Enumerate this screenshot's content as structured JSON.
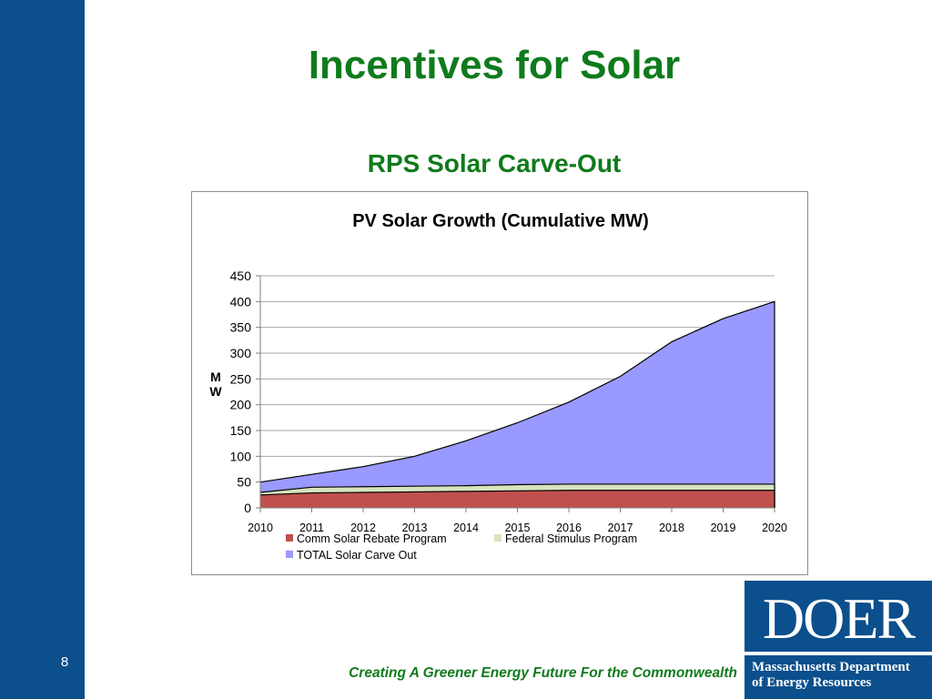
{
  "slide": {
    "title": "Incentives for Solar",
    "subtitle": "RPS Solar Carve-Out",
    "page_number": "8",
    "footer": "Creating A Greener Energy Future For the Commonwealth",
    "logo": {
      "mark": "DOER",
      "line1": "Massachusetts Department",
      "line2": "of Energy Resources"
    },
    "colors": {
      "sidebar": "#0b4f8c",
      "title_green": "#0f7b1c"
    }
  },
  "chart_data": {
    "type": "area",
    "title": "PV Solar Growth (Cumulative MW)",
    "ylabel": "MW",
    "ylim": [
      0,
      450
    ],
    "yticks": [
      0,
      50,
      100,
      150,
      200,
      250,
      300,
      350,
      400,
      450
    ],
    "grid": true,
    "legend_position": "bottom",
    "x": [
      "2010",
      "2011",
      "2012",
      "2013",
      "2014",
      "2015",
      "2016",
      "2017",
      "2018",
      "2019",
      "2020"
    ],
    "series": [
      {
        "name": "Comm Solar Rebate Program",
        "color": "#c0504d",
        "values": [
          25,
          29,
          30,
          31,
          32,
          33,
          34,
          34,
          34,
          34,
          34
        ]
      },
      {
        "name": "Federal Stimulus Program",
        "color": "#d7e4bd",
        "values": [
          30,
          40,
          41,
          42,
          43,
          45,
          46,
          46,
          46,
          46,
          46
        ]
      },
      {
        "name": "TOTAL Solar Carve Out",
        "color": "#9999ff",
        "values": [
          50,
          65,
          80,
          100,
          130,
          165,
          205,
          255,
          322,
          367,
          400
        ]
      }
    ]
  }
}
